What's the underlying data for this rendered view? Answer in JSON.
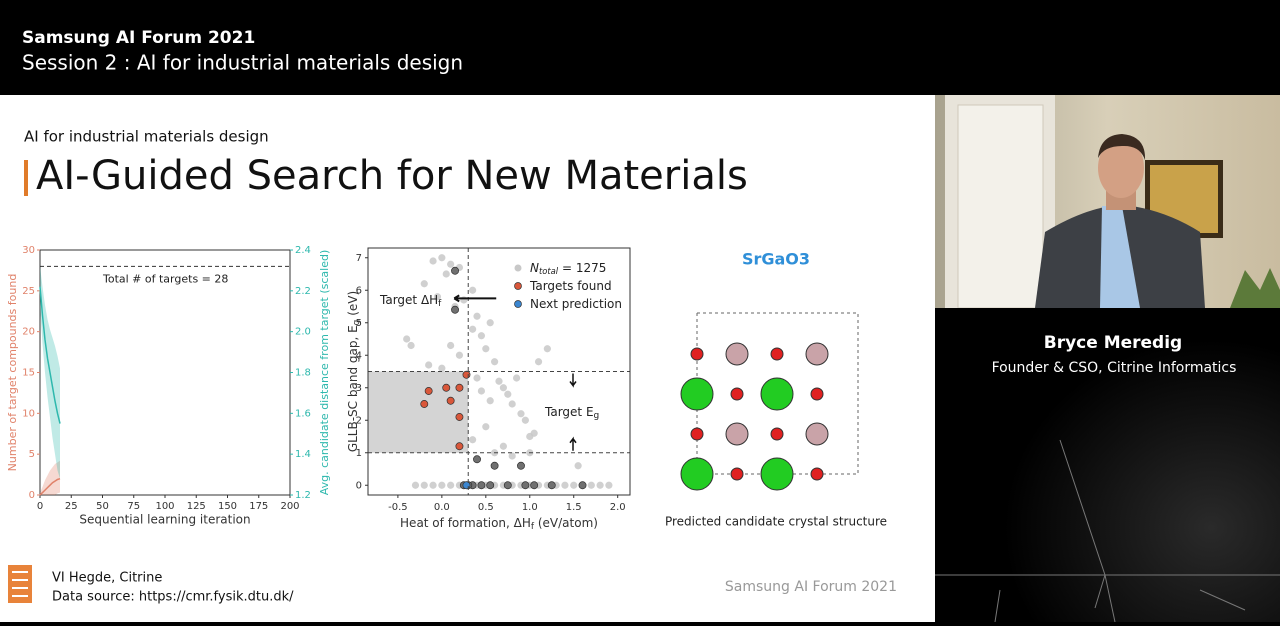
{
  "header": {
    "event": "Samsung AI Forum 2021",
    "session": "Session 2 : AI for industrial materials design"
  },
  "slide": {
    "kicker": "AI for industrial materials design",
    "title": "AI-Guided Search for New Materials",
    "chart_left": {
      "type": "line",
      "xlim": [
        0,
        200
      ],
      "xticks": [
        0,
        25,
        50,
        75,
        100,
        125,
        150,
        175,
        200
      ],
      "ylim": [
        0,
        30
      ],
      "yticks": [
        0,
        5,
        10,
        15,
        20,
        25,
        30
      ],
      "y2lim": [
        1.2,
        2.4
      ],
      "y2ticks": [
        1.2,
        1.4,
        1.6,
        1.8,
        {
          "value": 2,
          "label": "2.0"
        },
        2.2,
        2.4
      ],
      "xlabel": "Sequential learning iteration",
      "ylabel": "Number of target compounds found",
      "y2label": "Avg. candidate distance from target (scaled)",
      "target_line": 28,
      "annotation": "Total # of targets = 28",
      "series": [
        {
          "color": "#e0826a",
          "x": [
            0,
            2,
            4,
            6,
            8,
            10,
            12,
            14,
            16
          ],
          "values": [
            0,
            0.3,
            0.6,
            0.9,
            1.2,
            1.5,
            1.7,
            1.9,
            2
          ],
          "band_low": [
            0,
            0,
            0,
            0,
            0,
            0,
            0,
            0.2,
            0.3
          ],
          "band_high": [
            0.3,
            1,
            1.8,
            2.4,
            3,
            3.4,
            3.8,
            4,
            4.2
          ]
        },
        {
          "color": "#2eb8ad",
          "axis": "y2",
          "x": [
            0,
            2,
            4,
            6,
            8,
            10,
            12,
            14,
            16
          ],
          "values": [
            2.22,
            2.08,
            1.96,
            1.87,
            1.8,
            1.73,
            1.66,
            1.6,
            1.55
          ],
          "band_low": [
            2.12,
            1.94,
            1.8,
            1.68,
            1.58,
            1.48,
            1.4,
            1.32,
            1.28
          ],
          "band_high": [
            2.32,
            2.22,
            2.13,
            2.06,
            2.01,
            1.97,
            1.93,
            1.88,
            1.82
          ]
        }
      ]
    },
    "chart_middle": {
      "type": "scatter",
      "xlim": [
        -0.84,
        2.14
      ],
      "xticks": [
        -0.5,
        {
          "value": 0,
          "label": "0.0"
        },
        0.5,
        {
          "value": 1,
          "label": "1.0"
        },
        1.5,
        {
          "value": 2,
          "label": "2.0"
        }
      ],
      "ylim": [
        -0.3,
        7.3
      ],
      "yticks": [
        0,
        1,
        2,
        3,
        4,
        5,
        6,
        7
      ],
      "xlabel": [
        "Heat of formation, ΔH",
        "f",
        " (eV/atom)"
      ],
      "ylabel": [
        "GLLB-SC band gap, E",
        "g",
        " (eV)"
      ],
      "target_dh": 0.3,
      "target_eg": [
        1,
        3.5
      ],
      "annotation_dh": [
        "Target ΔH",
        "f"
      ],
      "annotation_eg": [
        "Target E",
        "g"
      ],
      "legend": [
        {
          "symbol": "N",
          "sub": "total",
          "text": " = 1275",
          "color": "#c8c8c8"
        },
        {
          "text": "Targets found",
          "color": "#d9573a"
        },
        {
          "text": "Next prediction",
          "color": "#3b86d0"
        }
      ],
      "series": [
        {
          "color": "#c8c8c8",
          "x": [
            -0.4,
            -0.35,
            -0.2,
            -0.1,
            0,
            0.05,
            0.1,
            0.2,
            -0.05,
            0.15,
            -0.15,
            0,
            0.1,
            0.2,
            0.35,
            0.4,
            0.45,
            0.5,
            0.55,
            0.6,
            0.65,
            0.7,
            0.75,
            0.8,
            0.85,
            0.9,
            0.95,
            1,
            0.55,
            0.5,
            0.45,
            0.4,
            0.35,
            0.7,
            0.8,
            1,
            1.2,
            1.1,
            0.6,
            0.35,
            0.25,
            1.55,
            1.05,
            -0.3,
            -0.2,
            -0.1,
            0,
            0.1,
            0.2,
            0.4,
            0.5,
            0.6,
            0.7,
            0.8,
            0.9,
            1,
            1.1,
            1.2,
            1.3,
            1.4,
            1.5,
            1.7,
            1.8,
            1.9
          ],
          "values": [
            4.5,
            4.3,
            6.2,
            6.9,
            7,
            6.5,
            6.8,
            6.7,
            5.8,
            5.5,
            3.7,
            3.6,
            4.3,
            4,
            4.8,
            5.2,
            4.6,
            4.2,
            5,
            3.8,
            3.2,
            3,
            2.8,
            2.5,
            3.3,
            2.2,
            2,
            1.5,
            2.6,
            1.8,
            2.9,
            3.3,
            1.4,
            1.2,
            0.9,
            1,
            4.2,
            3.8,
            1,
            6,
            5.7,
            0.6,
            1.6,
            0,
            0,
            0,
            0,
            0,
            0,
            0,
            0,
            0,
            0,
            0,
            0,
            0,
            0,
            0,
            0,
            0,
            0,
            0,
            0,
            0
          ]
        },
        {
          "color": "#d9573a",
          "x": [
            0.28,
            0.05,
            0.2,
            -0.15,
            0.1,
            -0.2,
            0.2,
            0.2
          ],
          "values": [
            3.4,
            3,
            3,
            2.9,
            2.6,
            2.5,
            2.1,
            1.2
          ]
        },
        {
          "color": "#707070",
          "x": [
            0.15,
            0.15,
            0.4,
            0.6,
            0.9,
            0.25,
            0.35,
            0.45,
            0.55,
            0.75,
            0.95,
            1.05,
            1.25,
            1.6,
            0.3
          ],
          "values": [
            6.6,
            5.4,
            0.8,
            0.6,
            0.6,
            0,
            0,
            0,
            0,
            0,
            0,
            0,
            0,
            0,
            0
          ]
        },
        {
          "color": "#3b86d0",
          "x": [
            0.28
          ],
          "values": [
            0
          ]
        }
      ]
    },
    "crystal": {
      "formula": "SrGaO3",
      "caption": "Predicted candidate crystal structure"
    },
    "credit": "VI Hegde, Citrine",
    "source": "Data source: https://cmr.fysik.dtu.dk/",
    "watermark": "Samsung AI Forum 2021"
  },
  "speaker": {
    "name": "Bryce Meredig",
    "role": "Founder & CSO, Citrine Informatics"
  }
}
